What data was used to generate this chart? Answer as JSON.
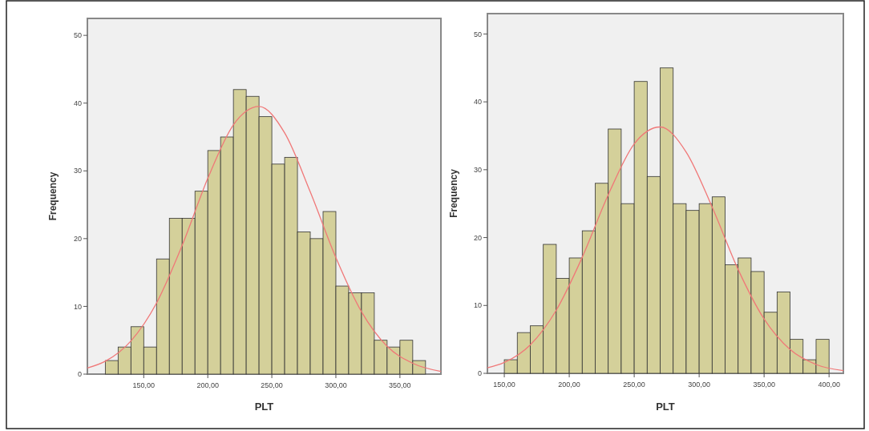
{
  "chart_data": [
    {
      "type": "histogram",
      "xlabel": "PLT",
      "ylabel": "Frequency",
      "bins": [
        120,
        130,
        140,
        150,
        160,
        170,
        180,
        190,
        200,
        210,
        220,
        230,
        240,
        250,
        260,
        270,
        280,
        290,
        300,
        310,
        320,
        330,
        340,
        350,
        360,
        370
      ],
      "values": [
        2,
        4,
        7,
        4,
        17,
        23,
        23,
        27,
        33,
        35,
        42,
        41,
        38,
        31,
        32,
        21,
        20,
        24,
        13,
        12,
        12,
        5,
        4,
        5,
        2
      ],
      "color": "#d4d09a",
      "xlim": [
        106,
        382
      ],
      "ylim": [
        0,
        52.5
      ],
      "xticks": [
        {
          "value": 150,
          "label": "150,00"
        },
        {
          "value": 200,
          "label": "200,00"
        },
        {
          "value": 250,
          "label": "250,00"
        },
        {
          "value": 300,
          "label": "300,00"
        },
        {
          "value": 350,
          "label": "350,00"
        }
      ],
      "yticks": [
        0,
        10,
        20,
        30,
        40,
        50
      ],
      "grid": false,
      "series": [
        {
          "type": "line",
          "color": "#f07878",
          "x": [
            106,
            120,
            140,
            160,
            180,
            200,
            220,
            240,
            260,
            280,
            300,
            320,
            340,
            360,
            382
          ],
          "values": [
            0.9,
            1.9,
            4.9,
            10.5,
            19,
            28.9,
            36.8,
            39.5,
            35.6,
            26.9,
            17.2,
            9.2,
            4.1,
            1.6,
            0.4
          ]
        }
      ]
    },
    {
      "type": "histogram",
      "xlabel": "PLT",
      "ylabel": "Frequency",
      "bins": [
        150,
        160,
        170,
        180,
        190,
        200,
        210,
        220,
        230,
        240,
        250,
        260,
        270,
        280,
        290,
        300,
        310,
        320,
        330,
        340,
        350,
        360,
        370,
        380,
        390,
        400
      ],
      "values": [
        2,
        6,
        7,
        19,
        14,
        17,
        21,
        28,
        36,
        25,
        43,
        29,
        45,
        25,
        24,
        25,
        26,
        16,
        17,
        15,
        9,
        12,
        5,
        2,
        5
      ],
      "color": "#d4d09a",
      "xlim": [
        137,
        411
      ],
      "ylim": [
        0,
        53
      ],
      "xticks": [
        {
          "value": 150,
          "label": "150,00"
        },
        {
          "value": 200,
          "label": "200,00"
        },
        {
          "value": 250,
          "label": "250,00"
        },
        {
          "value": 300,
          "label": "300,00"
        },
        {
          "value": 350,
          "label": "350,00"
        },
        {
          "value": 400,
          "label": "400,00"
        }
      ],
      "yticks": [
        0,
        10,
        20,
        30,
        40,
        50
      ],
      "grid": false,
      "series": [
        {
          "type": "line",
          "color": "#f07878",
          "x": [
            137,
            150,
            170,
            190,
            210,
            230,
            250,
            270,
            290,
            310,
            330,
            350,
            370,
            390,
            411
          ],
          "values": [
            0.8,
            1.6,
            4.2,
            9.3,
            17.1,
            26.3,
            33.8,
            36.3,
            32.6,
            24.5,
            15.3,
            8,
            3.5,
            1.3,
            0.4
          ]
        }
      ]
    }
  ]
}
